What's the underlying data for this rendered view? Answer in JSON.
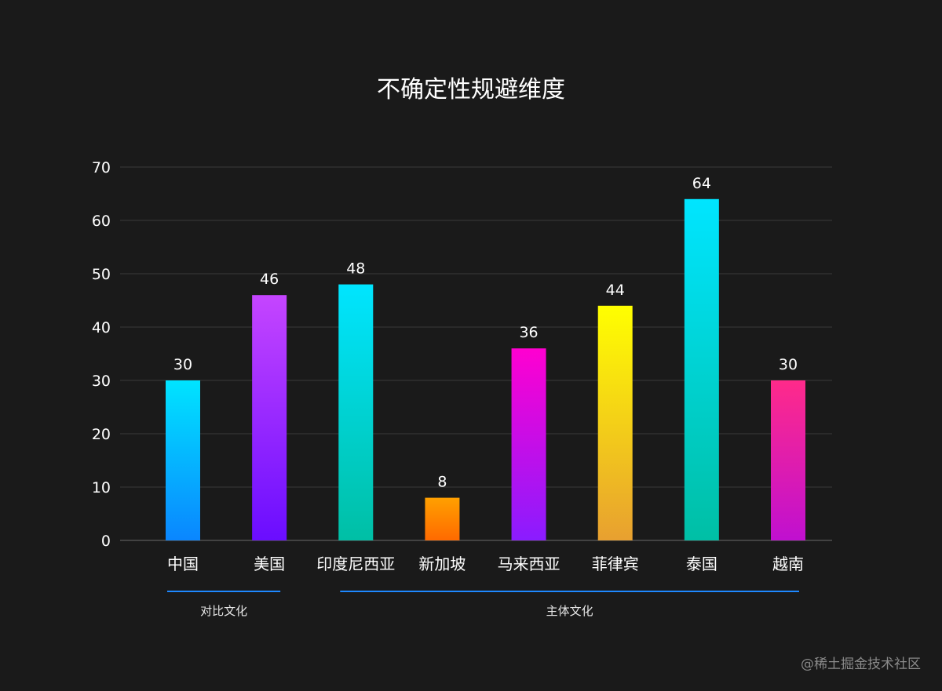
{
  "chart_data": {
    "type": "bar",
    "title": "不确定性规避维度",
    "categories": [
      "中国",
      "美国",
      "印度尼西亚",
      "新加坡",
      "马来西亚",
      "菲律宾",
      "泰国",
      "越南"
    ],
    "values": [
      30,
      46,
      48,
      8,
      36,
      44,
      64,
      30
    ],
    "ylim": [
      0,
      70
    ],
    "yticks": [
      0,
      10,
      20,
      30,
      40,
      50,
      60,
      70
    ],
    "grid": true,
    "xlabel": "",
    "ylabel": "",
    "bar_gradients": [
      [
        "#00e4ff",
        "#0a86ff"
      ],
      [
        "#c545ff",
        "#6a0dff"
      ],
      [
        "#00e5ff",
        "#00bfa5"
      ],
      [
        "#ffa000",
        "#ff6a00"
      ],
      [
        "#ff00d0",
        "#8a1cff"
      ],
      [
        "#ffff00",
        "#e8a030"
      ],
      [
        "#00e5ff",
        "#00bfa5"
      ],
      [
        "#ff2a8a",
        "#c010d0"
      ]
    ],
    "groups": [
      {
        "label": "对比文化",
        "start_index": 0,
        "end_index": 1
      },
      {
        "label": "主体文化",
        "start_index": 2,
        "end_index": 7
      }
    ]
  },
  "watermark": "@稀土掘金技术社区",
  "colors": {
    "background": "#1a1a1a",
    "text": "#ffffff",
    "group_line": "#1e88ff"
  }
}
